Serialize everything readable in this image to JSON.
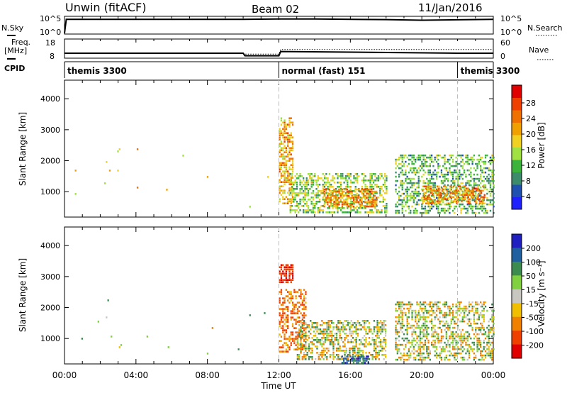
{
  "header": {
    "station": "Unwin (fitACF)",
    "beam": "Beam 02",
    "date": "11/Jan/2016"
  },
  "nsky_panel": {
    "left_label": "N.Sky",
    "right_label": "N.Search",
    "left_ticks": [
      "10^5",
      "10^0"
    ],
    "right_ticks": [
      "10^5",
      "10^0"
    ]
  },
  "freq_panel": {
    "left_label_1": "Freq.",
    "left_label_2": "[MHz]",
    "right_label": "Nave",
    "left_ticks": [
      "18",
      "8"
    ],
    "right_ticks": [
      "60",
      "0"
    ]
  },
  "cpid_panel": {
    "label": "CPID",
    "modes": [
      {
        "name": "themis 3300",
        "start_h": 0
      },
      {
        "name": "normal (fast) 151",
        "start_h": 12
      },
      {
        "name": "themis 3300",
        "start_h": 22
      }
    ]
  },
  "x_axis": {
    "title": "Time UT",
    "ticks": [
      "00:00",
      "04:00",
      "08:00",
      "12:00",
      "16:00",
      "20:00",
      "00:00"
    ]
  },
  "power_panel": {
    "ylabel": "Slant Range [km]",
    "yticks": [
      "4000",
      "3000",
      "2000",
      "1000"
    ],
    "cbar_label": "Power [dB]",
    "cbar_ticks": [
      "28",
      "24",
      "20",
      "16",
      "12",
      "8",
      "4"
    ],
    "colors": [
      "#2020ff",
      "#2050b0",
      "#3c8c6c",
      "#3cb43c",
      "#a0e040",
      "#f0d020",
      "#f0a000",
      "#f07000",
      "#f04000",
      "#e00000"
    ]
  },
  "velocity_panel": {
    "ylabel": "Slant Range [km]",
    "yticks": [
      "4000",
      "3000",
      "2000",
      "1000"
    ],
    "cbar_label": "Velocity [m s⁻¹]",
    "cbar_ticks": [
      "200",
      "100",
      "50",
      "15",
      "-15",
      "-50",
      "-100",
      "-200"
    ],
    "colors": [
      "#2020c0",
      "#2060a0",
      "#3c8c50",
      "#80d040",
      "#c8c8c0",
      "#f0c000",
      "#f08000",
      "#f04000",
      "#e00000"
    ]
  },
  "chart_data": [
    {
      "type": "line",
      "title": "N.Sky / N.Search",
      "x_range_hours": [
        0,
        24
      ],
      "series": [
        {
          "name": "N.Sky",
          "x": [
            0,
            0.1,
            10,
            12,
            14,
            18,
            20,
            24
          ],
          "y_log10": [
            0,
            4.5,
            4.5,
            4.6,
            4.6,
            4.4,
            4.2,
            4.5
          ]
        },
        {
          "name": "N.Search",
          "x": [
            0,
            24
          ],
          "y_log10": [
            4.5,
            4.5
          ]
        }
      ]
    },
    {
      "type": "line",
      "title": "Freq / Nave",
      "x_range_hours": [
        0,
        24
      ],
      "series": [
        {
          "name": "Freq",
          "x": [
            0,
            10,
            10.1,
            12,
            12.1,
            22,
            24
          ],
          "y": [
            10.5,
            10.5,
            9,
            9,
            11.5,
            10.5,
            10.5
          ]
        },
        {
          "name": "Nave",
          "x": [
            0,
            10,
            10.1,
            12,
            12.1,
            24
          ],
          "y": [
            15,
            15,
            12,
            12,
            28,
            28
          ]
        }
      ]
    },
    {
      "type": "heatmap",
      "title": "Power [dB]",
      "x_range_hours": [
        0,
        24
      ],
      "y_range_km": [
        180,
        4600
      ],
      "value_range": [
        0,
        30
      ],
      "regions": [
        {
          "t0": 0.3,
          "t1": 11.5,
          "r0": 500,
          "r1": 2400,
          "value": 18,
          "density": 0.004
        },
        {
          "t0": 12.0,
          "t1": 12.8,
          "r0": 600,
          "r1": 3400,
          "value": 20,
          "density": 0.55
        },
        {
          "t0": 12.6,
          "t1": 18.0,
          "r0": 300,
          "r1": 1600,
          "value": 14,
          "density": 0.55
        },
        {
          "t0": 14.5,
          "t1": 17.5,
          "r0": 500,
          "r1": 1100,
          "value": 22,
          "density": 0.6
        },
        {
          "t0": 18.5,
          "t1": 24.0,
          "r0": 300,
          "r1": 2200,
          "value": 12,
          "density": 0.5
        },
        {
          "t0": 20.0,
          "t1": 23.5,
          "r0": 600,
          "r1": 1200,
          "value": 22,
          "density": 0.55
        }
      ]
    },
    {
      "type": "heatmap",
      "title": "Velocity [m s⁻¹]",
      "x_range_hours": [
        0,
        24
      ],
      "y_range_km": [
        180,
        4600
      ],
      "value_range": [
        -250,
        250
      ],
      "regions": [
        {
          "t0": 0.3,
          "t1": 11.5,
          "r0": 500,
          "r1": 2400,
          "value": 0,
          "density": 0.004
        },
        {
          "t0": 12.0,
          "t1": 12.8,
          "r0": 2800,
          "r1": 3400,
          "value": -200,
          "density": 0.75
        },
        {
          "t0": 12.0,
          "t1": 13.5,
          "r0": 600,
          "r1": 2600,
          "value": -100,
          "density": 0.5
        },
        {
          "t0": 13.0,
          "t1": 18.0,
          "r0": 300,
          "r1": 1600,
          "value": 0,
          "density": 0.55
        },
        {
          "t0": 18.5,
          "t1": 24.0,
          "r0": 300,
          "r1": 2200,
          "value": 0,
          "density": 0.5
        },
        {
          "t0": 15.5,
          "t1": 17.0,
          "r0": 200,
          "r1": 450,
          "value": 150,
          "density": 0.6
        }
      ]
    }
  ]
}
